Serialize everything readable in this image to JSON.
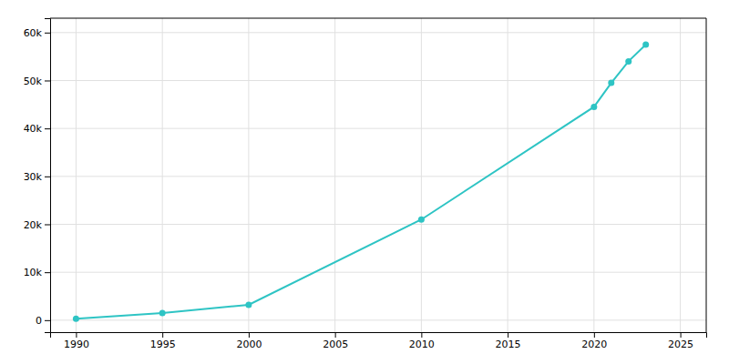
{
  "chart_data": {
    "type": "line",
    "x": [
      1990,
      1995,
      2000,
      2010,
      2020,
      2021,
      2022,
      2023
    ],
    "values": [
      300,
      1500,
      3200,
      21000,
      44500,
      49500,
      54000,
      57500
    ],
    "color": "#2EC4C4",
    "marker": "circle",
    "xlim": [
      1988.5,
      2026.5
    ],
    "ylim": [
      -2500,
      63000
    ],
    "xticks": [
      1990,
      1995,
      2000,
      2005,
      2010,
      2015,
      2020,
      2025
    ],
    "yticks": [
      0,
      {
        "value": 10000,
        "label": "10k"
      },
      {
        "value": 20000,
        "label": "20k"
      },
      {
        "value": 30000,
        "label": "30k"
      },
      {
        "value": 40000,
        "label": "40k"
      },
      {
        "value": 50000,
        "label": "50k"
      },
      {
        "value": 60000,
        "label": "60k"
      }
    ],
    "grid": true
  }
}
